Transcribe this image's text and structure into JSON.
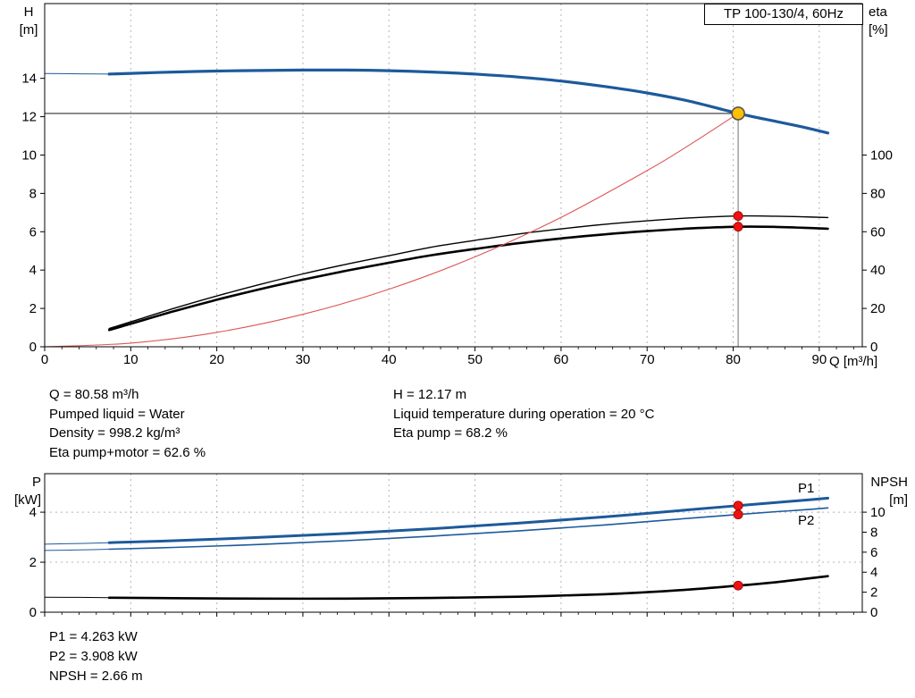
{
  "palette": {
    "blue": "#1d5a9b",
    "black": "#000000",
    "red_curve": "#dd5555",
    "red_dot": "#ee1111",
    "yellow": "#ffc000",
    "grid": "#b4b4b4",
    "op_line": "#999999",
    "op_hline": "#333333"
  },
  "top_chart": {
    "title": "TP 100-130/4, 60Hz",
    "y_left_unit": [
      "H",
      "[m]"
    ],
    "y_right_unit": [
      "eta",
      "[%]"
    ],
    "x_unit": "Q [m³/h]"
  },
  "bottom_chart": {
    "y_left_unit": [
      "P",
      "[kW]"
    ],
    "y_right_unit": [
      "NPSH",
      "[m]"
    ]
  },
  "info": {
    "top_left": [
      "Q = 80.58 m³/h",
      "Pumped liquid = Water",
      "Density = 998.2 kg/m³",
      "Eta pump+motor = 62.6 %"
    ],
    "top_right": [
      "H = 12.17 m",
      "Liquid temperature during operation = 20 °C",
      "Eta pump = 68.2 %"
    ],
    "bottom": [
      "P1 = 4.263 kW",
      "P2 = 3.908 kW",
      "NPSH = 2.66 m"
    ]
  },
  "chart_data": [
    {
      "id": "qh-eta",
      "type": "line",
      "title": "TP 100-130/4, 60Hz",
      "x_axis": {
        "label": "Q [m³/h]",
        "min": 0,
        "max": 95,
        "ticks": [
          0,
          10,
          20,
          30,
          40,
          50,
          60,
          70,
          80,
          90
        ]
      },
      "y_left": {
        "label": "H [m]",
        "min": 0,
        "max": 17.9,
        "ticks": [
          0,
          2,
          4,
          6,
          8,
          10,
          12,
          14
        ]
      },
      "y_right": {
        "label": "eta [%]",
        "min": 0,
        "max": 179,
        "ticks": [
          0,
          20,
          40,
          60,
          80,
          100
        ]
      },
      "grid": "vertical-dashed",
      "operating_point": {
        "q": 80.58,
        "h": 12.17
      },
      "series": [
        {
          "name": "H-Q lead",
          "axis": "left",
          "color": "blue",
          "width": 1,
          "x": [
            0,
            3,
            6,
            7.5
          ],
          "y": [
            14.25,
            14.24,
            14.23,
            14.22
          ]
        },
        {
          "name": "H-Q curve",
          "axis": "left",
          "color": "blue",
          "width": 3.2,
          "x": [
            7.5,
            10,
            15,
            20,
            25,
            30,
            35,
            40,
            45,
            50,
            55,
            60,
            65,
            70,
            75,
            80.58,
            85,
            88,
            91
          ],
          "y": [
            14.22,
            14.26,
            14.33,
            14.38,
            14.41,
            14.43,
            14.43,
            14.4,
            14.33,
            14.22,
            14.07,
            13.86,
            13.58,
            13.24,
            12.8,
            12.17,
            11.75,
            11.47,
            11.15
          ]
        },
        {
          "name": "Eta pump",
          "axis": "right",
          "color": "black",
          "width": 1.4,
          "x": [
            7.5,
            10,
            15,
            20,
            25,
            30,
            35,
            40,
            45,
            50,
            55,
            60,
            65,
            70,
            75,
            80.58,
            85,
            88,
            91
          ],
          "y": [
            9.5,
            13,
            20,
            26.5,
            32.5,
            38,
            43,
            47.5,
            52,
            55.5,
            58.8,
            61.5,
            63.8,
            65.7,
            67.2,
            68.2,
            68.1,
            67.8,
            67.4
          ]
        },
        {
          "name": "Eta pump+motor",
          "axis": "right",
          "color": "black",
          "width": 2.6,
          "x": [
            7.5,
            10,
            15,
            20,
            25,
            30,
            35,
            40,
            45,
            50,
            55,
            60,
            65,
            70,
            75,
            80.58,
            85,
            88,
            91
          ],
          "y": [
            8.7,
            12,
            18.5,
            24.5,
            30,
            35,
            39.6,
            43.8,
            47.8,
            51,
            54,
            56.5,
            58.6,
            60.3,
            61.7,
            62.6,
            62.5,
            62.1,
            61.6
          ]
        },
        {
          "name": "System curve",
          "axis": "left",
          "color": "red_curve",
          "width": 1.1,
          "x": [
            0,
            10,
            20,
            30,
            40,
            50,
            60,
            70,
            75,
            80.58
          ],
          "y": [
            0,
            0.19,
            0.75,
            1.69,
            3.0,
            4.69,
            6.75,
            9.19,
            10.55,
            12.17
          ]
        }
      ],
      "markers": [
        {
          "axis": "right",
          "q": 80.58,
          "value": 68.2
        },
        {
          "axis": "right",
          "q": 80.58,
          "value": 62.6
        }
      ]
    },
    {
      "id": "power-npsh",
      "type": "line",
      "x_axis": {
        "label": "",
        "min": 0,
        "max": 95,
        "ticks": [
          0,
          10,
          20,
          30,
          40,
          50,
          60,
          70,
          80,
          90
        ]
      },
      "y_left": {
        "label": "P [kW]",
        "min": 0,
        "max": 5.54,
        "ticks": [
          0,
          2,
          4
        ]
      },
      "y_right": {
        "label": "NPSH [m]",
        "min": 0,
        "max": 13.85,
        "ticks": [
          0,
          2,
          4,
          6,
          8,
          10
        ]
      },
      "grid": "vertical-and-horizontal-dashed",
      "series": [
        {
          "name": "P1 lead",
          "axis": "left",
          "color": "blue",
          "width": 1,
          "x": [
            0,
            4,
            7.5
          ],
          "y": [
            2.72,
            2.75,
            2.78
          ]
        },
        {
          "name": "P1",
          "axis": "left",
          "color": "blue",
          "width": 3,
          "x": [
            7.5,
            15,
            25,
            35,
            45,
            55,
            65,
            75,
            80.58,
            85,
            88,
            91
          ],
          "y": [
            2.78,
            2.86,
            2.99,
            3.15,
            3.34,
            3.56,
            3.81,
            4.1,
            4.263,
            4.39,
            4.47,
            4.56
          ]
        },
        {
          "name": "P2 lead",
          "axis": "left",
          "color": "blue",
          "width": 1,
          "x": [
            0,
            4,
            7.5
          ],
          "y": [
            2.47,
            2.49,
            2.52
          ]
        },
        {
          "name": "P2",
          "axis": "left",
          "color": "blue",
          "width": 1.6,
          "x": [
            7.5,
            15,
            25,
            35,
            45,
            55,
            65,
            75,
            80.58,
            85,
            88,
            91
          ],
          "y": [
            2.52,
            2.59,
            2.71,
            2.86,
            3.04,
            3.25,
            3.49,
            3.76,
            3.908,
            4.02,
            4.09,
            4.17
          ]
        },
        {
          "name": "NPSH lead",
          "axis": "right",
          "color": "black",
          "width": 1,
          "x": [
            0,
            4,
            7.5
          ],
          "y": [
            1.5,
            1.48,
            1.45
          ]
        },
        {
          "name": "NPSH",
          "axis": "right",
          "color": "black",
          "width": 2.6,
          "x": [
            7.5,
            15,
            25,
            35,
            45,
            55,
            65,
            70,
            75,
            80.58,
            85,
            88,
            91
          ],
          "y": [
            1.45,
            1.4,
            1.36,
            1.36,
            1.42,
            1.55,
            1.8,
            2.0,
            2.27,
            2.66,
            3.0,
            3.3,
            3.6
          ]
        }
      ],
      "markers": [
        {
          "axis": "left",
          "q": 80.58,
          "value": 4.263
        },
        {
          "axis": "left",
          "q": 80.58,
          "value": 3.908
        },
        {
          "axis": "right",
          "q": 80.58,
          "value": 2.66
        }
      ]
    }
  ]
}
